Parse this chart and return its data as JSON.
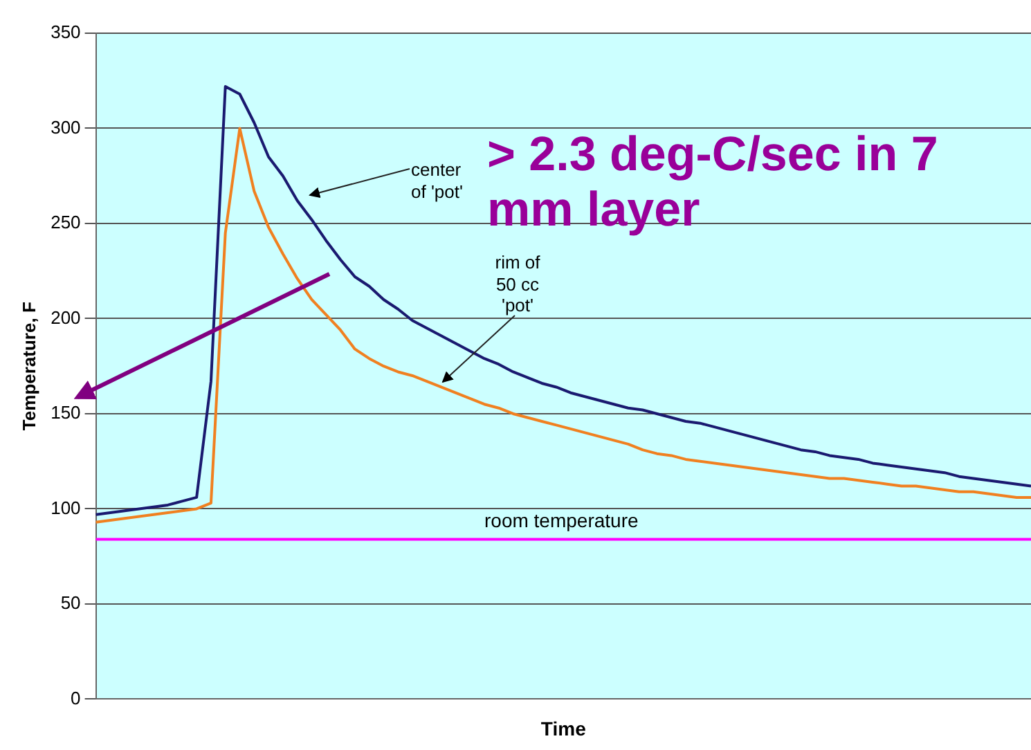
{
  "chart_data": {
    "type": "line",
    "xlabel": "Time",
    "ylabel": "Temperature, F",
    "categories": [
      null,
      null,
      null,
      null,
      null,
      null,
      null,
      null,
      null,
      null,
      null,
      null,
      null,
      null,
      null,
      null,
      null,
      null,
      null,
      null,
      null,
      null,
      null,
      null,
      null,
      null,
      null,
      null,
      null,
      null,
      null,
      null,
      null,
      null,
      null,
      null,
      null,
      null,
      null,
      null,
      null,
      null,
      null,
      null,
      null,
      null,
      null,
      null,
      null,
      null,
      null,
      null,
      null,
      null,
      null,
      null,
      null,
      null,
      null,
      null,
      null,
      null,
      null,
      null,
      null,
      null
    ],
    "series": [
      {
        "color": "#1a1a70",
        "values": [
          97,
          98,
          99,
          100,
          101,
          102,
          104,
          106,
          167,
          322,
          318,
          303,
          285,
          275,
          262,
          252,
          241,
          231,
          222,
          217,
          210,
          205,
          199,
          195,
          191,
          187,
          183,
          179,
          176,
          172,
          169,
          166,
          164,
          161,
          159,
          157,
          155,
          153,
          152,
          150,
          148,
          146,
          145,
          143,
          141,
          139,
          137,
          135,
          133,
          131,
          130,
          128,
          127,
          126,
          124,
          123,
          122,
          121,
          120,
          119,
          117,
          116,
          115,
          114,
          113,
          112
        ]
      },
      {
        "color": "#f08020",
        "values": [
          93,
          94,
          95,
          96,
          97,
          98,
          99,
          100,
          103,
          245,
          300,
          267,
          248,
          234,
          221,
          210,
          202,
          194,
          184,
          179,
          175,
          172,
          170,
          167,
          164,
          161,
          158,
          155,
          153,
          150,
          148,
          146,
          144,
          142,
          140,
          138,
          136,
          134,
          131,
          129,
          128,
          126,
          125,
          124,
          123,
          122,
          121,
          120,
          119,
          118,
          117,
          116,
          116,
          115,
          114,
          113,
          112,
          112,
          111,
          110,
          109,
          109,
          108,
          107,
          106,
          106
        ]
      },
      {
        "color": "#ff00ff",
        "values": [
          84,
          84,
          84,
          84,
          84,
          84,
          84,
          84,
          84,
          84,
          84,
          84,
          84,
          84,
          84,
          84,
          84,
          84,
          84,
          84,
          84,
          84,
          84,
          84,
          84,
          84,
          84,
          84,
          84,
          84,
          84,
          84,
          84,
          84,
          84,
          84,
          84,
          84,
          84,
          84,
          84,
          84,
          84,
          84,
          84,
          84,
          84,
          84,
          84,
          84,
          84,
          84,
          84,
          84,
          84,
          84,
          84,
          84,
          84,
          84,
          84,
          84,
          84,
          84,
          84,
          84
        ]
      }
    ],
    "ylim": [
      0,
      350
    ],
    "yticks": [
      0,
      50,
      100,
      150,
      200,
      250,
      300,
      350
    ],
    "grid": "y",
    "tick_labels": "y",
    "marker": "none",
    "line_style": "solid",
    "annotations": [
      "center of 'pot'",
      "rim of 50 cc 'pot'",
      "room temperature",
      "> 2.3 deg-C/sec in 7 mm layer"
    ]
  }
}
